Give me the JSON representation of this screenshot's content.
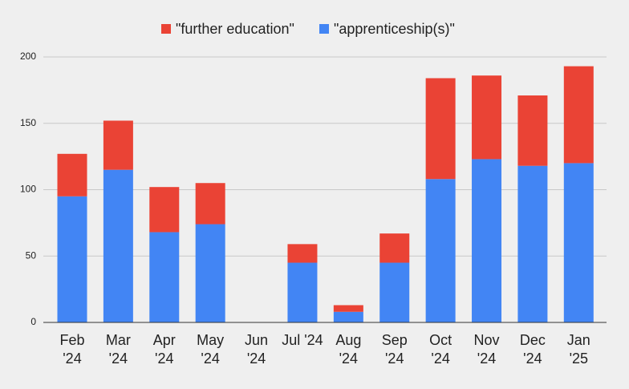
{
  "chart_data": {
    "type": "stacked_bar",
    "categories": [
      "Feb '24",
      "Mar '24",
      "Apr '24",
      "May '24",
      "Jun '24",
      "Jul '24",
      "Aug '24",
      "Sep '24",
      "Oct '24",
      "Nov '24",
      "Dec '24",
      "Jan '25"
    ],
    "series": [
      {
        "name": "\"further education\"",
        "color": "#ea4335",
        "values": [
          32,
          37,
          34,
          31,
          0,
          14,
          5,
          22,
          76,
          63,
          53,
          73
        ]
      },
      {
        "name": "\"apprenticeship(s)\"",
        "color": "#4285f4",
        "values": [
          95,
          115,
          68,
          74,
          0,
          45,
          8,
          45,
          108,
          123,
          118,
          120
        ]
      }
    ],
    "ylim": [
      0,
      200
    ],
    "yticks": [
      0,
      50,
      100,
      150,
      200
    ],
    "grid": true,
    "legend": "top"
  }
}
